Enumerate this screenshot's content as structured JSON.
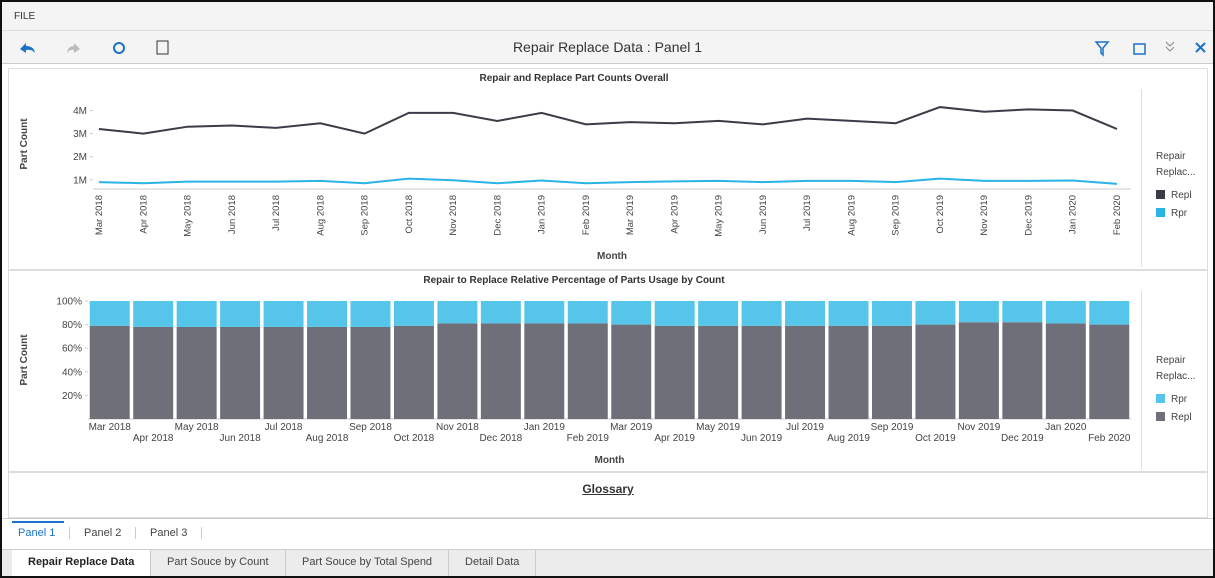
{
  "menu": "FILE",
  "toolbar": {
    "title": "Repair Replace Data : Panel 1"
  },
  "chart_data": [
    {
      "type": "line",
      "title": "Repair and Replace Part Counts Overall",
      "x_label": "Month",
      "y_label": "Part Count",
      "legend_title": "Repair Replac...",
      "categories": [
        "Mar 2018",
        "Apr 2018",
        "May 2018",
        "Jun 2018",
        "Jul 2018",
        "Aug 2018",
        "Sep 2018",
        "Oct 2018",
        "Nov 2018",
        "Dec 2018",
        "Jan 2019",
        "Feb 2019",
        "Mar 2019",
        "Apr 2019",
        "May 2019",
        "Jun 2019",
        "Jul 2019",
        "Aug 2019",
        "Sep 2019",
        "Oct 2019",
        "Nov 2019",
        "Dec 2019",
        "Jan 2020",
        "Feb 2020"
      ],
      "series": [
        {
          "name": "Repl",
          "color": "#3a3d47",
          "values": [
            3200000,
            3000000,
            3300000,
            3350000,
            3250000,
            3450000,
            3000000,
            3900000,
            3900000,
            3550000,
            3900000,
            3400000,
            3500000,
            3450000,
            3550000,
            3400000,
            3650000,
            3550000,
            3450000,
            4150000,
            3950000,
            4050000,
            4000000,
            3200000
          ]
        },
        {
          "name": "Rpr",
          "color": "#2ab4e6",
          "values": [
            900000,
            850000,
            920000,
            920000,
            920000,
            950000,
            850000,
            1050000,
            980000,
            850000,
            970000,
            850000,
            900000,
            930000,
            950000,
            900000,
            950000,
            950000,
            900000,
            1050000,
            950000,
            950000,
            970000,
            820000
          ]
        }
      ],
      "ylim": [
        600000,
        4500000
      ],
      "yticks": [
        {
          "value": 1000000,
          "label": "1M"
        },
        {
          "value": 2000000,
          "label": "2M"
        },
        {
          "value": 3000000,
          "label": "3M"
        },
        {
          "value": 4000000,
          "label": "4M"
        }
      ]
    },
    {
      "type": "stacked_bar",
      "title": "Repair to Replace Relative Percentage of Parts Usage by Count",
      "x_label": "Month",
      "y_label": "Part Count",
      "legend_title": "Repair Replac...",
      "categories": [
        "Mar 2018",
        "Apr 2018",
        "May 2018",
        "Jun 2018",
        "Jul 2018",
        "Aug 2018",
        "Sep 2018",
        "Oct 2018",
        "Nov 2018",
        "Dec 2018",
        "Jan 2019",
        "Feb 2019",
        "Mar 2019",
        "Apr 2019",
        "May 2019",
        "Jun 2019",
        "Jul 2019",
        "Aug 2019",
        "Sep 2019",
        "Oct 2019",
        "Nov 2019",
        "Dec 2019",
        "Jan 2020",
        "Feb 2020"
      ],
      "series": [
        {
          "name": "Repl",
          "color": "#6f6f79",
          "values": [
            79,
            78,
            78,
            78,
            78,
            78,
            78,
            79,
            81,
            81,
            81,
            81,
            80,
            79,
            79,
            79,
            79,
            79,
            79,
            80,
            82,
            82,
            81,
            80
          ]
        },
        {
          "name": "Rpr",
          "color": "#55c6ea",
          "values": [
            21,
            22,
            22,
            22,
            22,
            22,
            22,
            21,
            19,
            19,
            19,
            19,
            20,
            21,
            21,
            21,
            21,
            21,
            21,
            20,
            18,
            18,
            19,
            20
          ]
        }
      ],
      "ylim": [
        0,
        100
      ],
      "yticks": [
        {
          "value": 20,
          "label": "20%"
        },
        {
          "value": 40,
          "label": "40%"
        },
        {
          "value": 60,
          "label": "60%"
        },
        {
          "value": 80,
          "label": "80%"
        },
        {
          "value": 100,
          "label": "100%"
        }
      ]
    }
  ],
  "glossary": "Glossary",
  "panel_tabs": [
    "Panel 1",
    "Panel 2",
    "Panel 3"
  ],
  "sheet_tabs": [
    "Repair Replace Data",
    "Part Souce by Count",
    "Part Souce by Total Spend",
    "Detail Data"
  ]
}
